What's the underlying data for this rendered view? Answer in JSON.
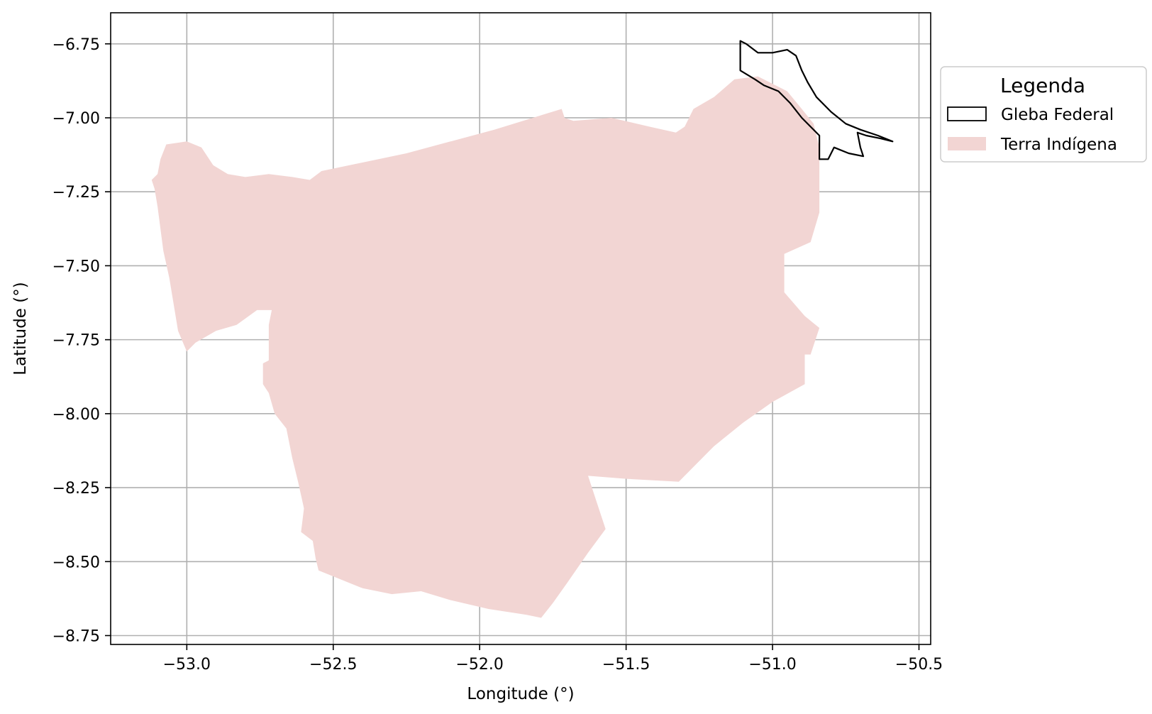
{
  "map": {
    "xlabel": "Longitude (°)",
    "ylabel": "Latitude (°)",
    "xlim": [
      -53.26,
      -50.46
    ],
    "ylim": [
      -8.78,
      -6.645
    ],
    "x_ticks": [
      -53.0,
      -52.5,
      -52.0,
      -51.5,
      -51.0,
      -50.5
    ],
    "x_tick_labels": [
      "−53.0",
      "−52.5",
      "−52.0",
      "−51.5",
      "−51.0",
      "−50.5"
    ],
    "y_ticks": [
      -6.75,
      -7.0,
      -7.25,
      -7.5,
      -7.75,
      -8.0,
      -8.25,
      -8.5,
      -8.75
    ],
    "y_tick_labels": [
      "−6.75",
      "−7.00",
      "−7.25",
      "−7.50",
      "−7.75",
      "−8.00",
      "−8.25",
      "−8.50",
      "−8.75"
    ],
    "grid": true,
    "colors": {
      "terra_indigena_fill": "#f2d5d3",
      "gleba_edge": "#000000",
      "grid": "#b0b0b0"
    },
    "legend": {
      "title": "Legenda",
      "placement": "right-outside",
      "entries": [
        {
          "label": "Gleba Federal",
          "style": "outline"
        },
        {
          "label": "Terra Indígena",
          "style": "fill"
        }
      ]
    },
    "layers": {
      "terra_indigena": {
        "name": "Terra Indígena",
        "coordinates": [
          [
            -53.11,
            -7.24
          ],
          [
            -53.12,
            -7.21
          ],
          [
            -53.1,
            -7.19
          ],
          [
            -53.09,
            -7.14
          ],
          [
            -53.07,
            -7.09
          ],
          [
            -53.0,
            -7.08
          ],
          [
            -52.95,
            -7.1
          ],
          [
            -52.91,
            -7.16
          ],
          [
            -52.86,
            -7.19
          ],
          [
            -52.8,
            -7.2
          ],
          [
            -52.72,
            -7.19
          ],
          [
            -52.64,
            -7.2
          ],
          [
            -52.58,
            -7.21
          ],
          [
            -52.54,
            -7.18
          ],
          [
            -52.25,
            -7.12
          ],
          [
            -51.95,
            -7.04
          ],
          [
            -51.72,
            -6.97
          ],
          [
            -51.71,
            -7.0
          ],
          [
            -51.68,
            -7.01
          ],
          [
            -51.55,
            -7.0
          ],
          [
            -51.42,
            -7.03
          ],
          [
            -51.33,
            -7.05
          ],
          [
            -51.3,
            -7.03
          ],
          [
            -51.27,
            -6.97
          ],
          [
            -51.2,
            -6.93
          ],
          [
            -51.13,
            -6.87
          ],
          [
            -51.05,
            -6.86
          ],
          [
            -50.95,
            -6.91
          ],
          [
            -50.9,
            -6.97
          ],
          [
            -50.86,
            -7.02
          ],
          [
            -50.84,
            -7.1
          ],
          [
            -50.84,
            -7.32
          ],
          [
            -50.87,
            -7.42
          ],
          [
            -50.96,
            -7.46
          ],
          [
            -50.96,
            -7.59
          ],
          [
            -50.89,
            -7.67
          ],
          [
            -50.84,
            -7.71
          ],
          [
            -50.87,
            -7.8
          ],
          [
            -50.89,
            -7.8
          ],
          [
            -50.89,
            -7.9
          ],
          [
            -51.0,
            -7.96
          ],
          [
            -51.1,
            -8.03
          ],
          [
            -51.2,
            -8.11
          ],
          [
            -51.32,
            -8.23
          ],
          [
            -51.5,
            -8.22
          ],
          [
            -51.63,
            -8.21
          ],
          [
            -51.6,
            -8.3
          ],
          [
            -51.57,
            -8.39
          ],
          [
            -51.63,
            -8.47
          ],
          [
            -51.7,
            -8.57
          ],
          [
            -51.75,
            -8.64
          ],
          [
            -51.79,
            -8.69
          ],
          [
            -51.84,
            -8.68
          ],
          [
            -51.97,
            -8.66
          ],
          [
            -52.1,
            -8.63
          ],
          [
            -52.2,
            -8.6
          ],
          [
            -52.3,
            -8.61
          ],
          [
            -52.4,
            -8.59
          ],
          [
            -52.5,
            -8.55
          ],
          [
            -52.55,
            -8.53
          ],
          [
            -52.56,
            -8.49
          ],
          [
            -52.57,
            -8.43
          ],
          [
            -52.61,
            -8.4
          ],
          [
            -52.6,
            -8.32
          ],
          [
            -52.62,
            -8.23
          ],
          [
            -52.64,
            -8.15
          ],
          [
            -52.66,
            -8.05
          ],
          [
            -52.7,
            -8.0
          ],
          [
            -52.72,
            -7.93
          ],
          [
            -52.74,
            -7.9
          ],
          [
            -52.74,
            -7.83
          ],
          [
            -52.72,
            -7.82
          ],
          [
            -52.72,
            -7.7
          ],
          [
            -52.71,
            -7.65
          ],
          [
            -52.76,
            -7.65
          ],
          [
            -52.83,
            -7.7
          ],
          [
            -52.9,
            -7.72
          ],
          [
            -52.97,
            -7.76
          ],
          [
            -53.0,
            -7.79
          ],
          [
            -53.03,
            -7.72
          ],
          [
            -53.06,
            -7.54
          ],
          [
            -53.08,
            -7.45
          ],
          [
            -53.1,
            -7.3
          ]
        ]
      },
      "gleba_federal": {
        "name": "Gleba Federal",
        "coordinates": [
          [
            -51.11,
            -6.74
          ],
          [
            -51.09,
            -6.75
          ],
          [
            -51.05,
            -6.78
          ],
          [
            -51.0,
            -6.78
          ],
          [
            -50.95,
            -6.77
          ],
          [
            -50.92,
            -6.79
          ],
          [
            -50.9,
            -6.84
          ],
          [
            -50.88,
            -6.88
          ],
          [
            -50.85,
            -6.93
          ],
          [
            -50.8,
            -6.98
          ],
          [
            -50.75,
            -7.02
          ],
          [
            -50.7,
            -7.04
          ],
          [
            -50.64,
            -7.06
          ],
          [
            -50.59,
            -7.08
          ],
          [
            -50.63,
            -7.07
          ],
          [
            -50.68,
            -7.06
          ],
          [
            -50.71,
            -7.05
          ],
          [
            -50.7,
            -7.1
          ],
          [
            -50.69,
            -7.13
          ],
          [
            -50.74,
            -7.12
          ],
          [
            -50.79,
            -7.1
          ],
          [
            -50.81,
            -7.14
          ],
          [
            -50.84,
            -7.14
          ],
          [
            -50.84,
            -7.06
          ],
          [
            -50.9,
            -7.0
          ],
          [
            -50.94,
            -6.95
          ],
          [
            -50.98,
            -6.91
          ],
          [
            -51.03,
            -6.89
          ],
          [
            -51.06,
            -6.87
          ],
          [
            -51.11,
            -6.84
          ]
        ]
      }
    }
  }
}
